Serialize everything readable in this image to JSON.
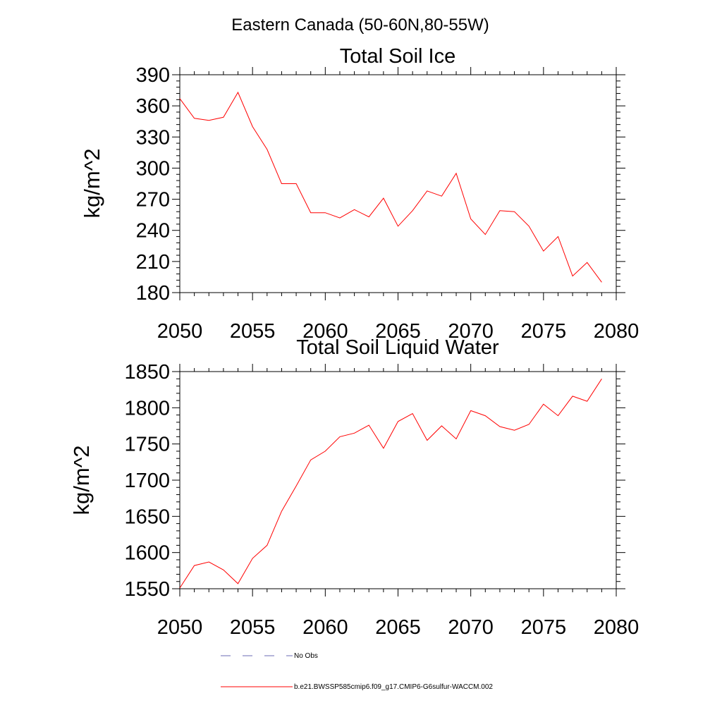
{
  "figure": {
    "title": "Eastern Canada (50-60N,80-55W)"
  },
  "colors": {
    "series_line": "#ff0000",
    "obs_line": "#6b6bb4",
    "frame": "#000000",
    "background": "#ffffff"
  },
  "chart_data": [
    {
      "type": "line",
      "title": "Total Soil Ice",
      "xlabel": "",
      "ylabel": "kg/m^2",
      "xlim": [
        2050,
        2080
      ],
      "ylim": [
        180,
        390
      ],
      "xticks": [
        2050,
        2055,
        2060,
        2065,
        2070,
        2075,
        2080
      ],
      "yticks": [
        180,
        210,
        240,
        270,
        300,
        330,
        360,
        390
      ],
      "grid": false,
      "series": [
        {
          "name": "b.e21.BWSSP585cmip6.f09_g17.CMIP6-G6sulfur-WACCM.002",
          "color": "#ff0000",
          "x": [
            2050,
            2051,
            2052,
            2053,
            2054,
            2055,
            2056,
            2057,
            2058,
            2059,
            2060,
            2061,
            2062,
            2063,
            2064,
            2065,
            2066,
            2067,
            2068,
            2069,
            2070,
            2071,
            2072,
            2073,
            2074,
            2075,
            2076,
            2077,
            2078,
            2079
          ],
          "y": [
            367,
            348,
            346,
            349,
            373,
            340,
            318,
            285,
            285,
            257,
            257,
            252,
            260,
            253,
            271,
            244,
            259,
            278,
            273,
            295,
            251,
            236,
            259,
            258,
            244,
            220,
            234,
            196,
            209,
            190
          ]
        }
      ]
    },
    {
      "type": "line",
      "title": "Total Soil Liquid Water",
      "xlabel": "",
      "ylabel": "kg/m^2",
      "xlim": [
        2050,
        2080
      ],
      "ylim": [
        1550,
        1850
      ],
      "xticks": [
        2050,
        2055,
        2060,
        2065,
        2070,
        2075,
        2080
      ],
      "yticks": [
        1550,
        1600,
        1650,
        1700,
        1750,
        1800,
        1850
      ],
      "grid": false,
      "series": [
        {
          "name": "b.e21.BWSSP585cmip6.f09_g17.CMIP6-G6sulfur-WACCM.002",
          "color": "#ff0000",
          "x": [
            2050,
            2051,
            2052,
            2053,
            2054,
            2055,
            2056,
            2057,
            2058,
            2059,
            2060,
            2061,
            2062,
            2063,
            2064,
            2065,
            2066,
            2067,
            2068,
            2069,
            2070,
            2071,
            2072,
            2073,
            2074,
            2075,
            2076,
            2077,
            2078,
            2079
          ],
          "y": [
            1551,
            1582,
            1587,
            1576,
            1557,
            1592,
            1610,
            1657,
            1692,
            1728,
            1740,
            1760,
            1765,
            1776,
            1744,
            1781,
            1792,
            1755,
            1775,
            1757,
            1796,
            1789,
            1774,
            1769,
            1777,
            1805,
            1789,
            1816,
            1809,
            1840
          ]
        }
      ]
    }
  ],
  "legend": {
    "placement": "bottom",
    "entries": [
      {
        "label": "No Obs",
        "style": "dashed",
        "color": "#6b6bb4"
      },
      {
        "label": "b.e21.BWSSP585cmip6.f09_g17.CMIP6-G6sulfur-WACCM.002",
        "style": "solid",
        "color": "#ff0000"
      }
    ]
  }
}
